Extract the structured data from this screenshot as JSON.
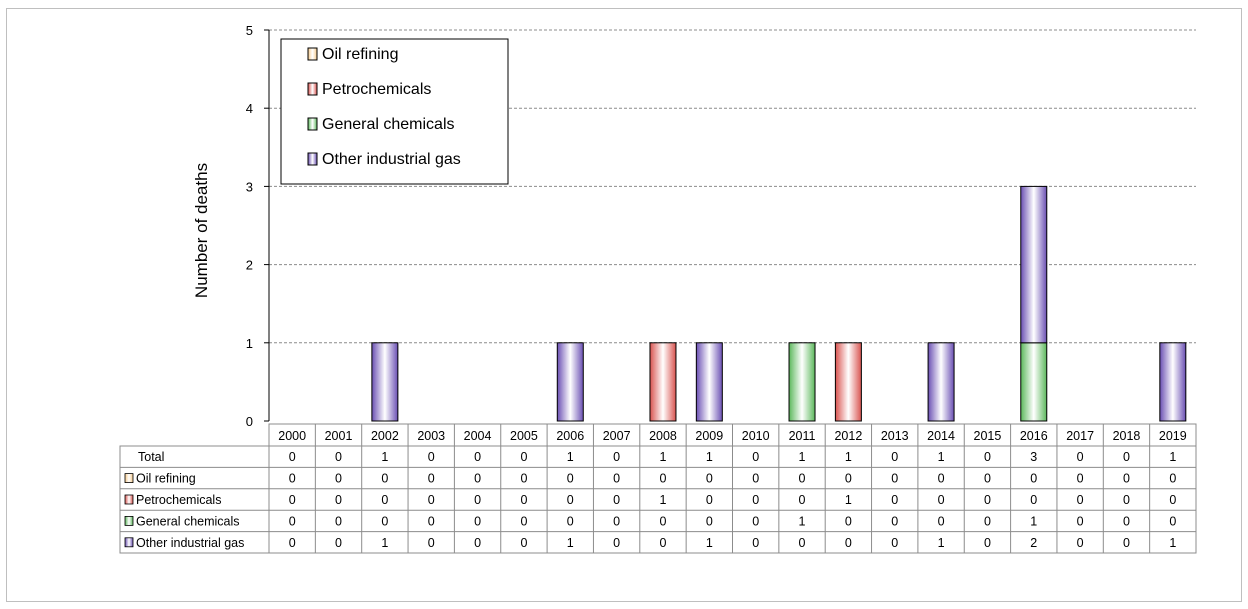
{
  "chart_data": {
    "type": "bar",
    "stacked": true,
    "title": "",
    "xlabel": "",
    "ylabel": "Number of deaths",
    "ylim": [
      0,
      5
    ],
    "yticks": [
      0,
      1,
      2,
      3,
      4,
      5
    ],
    "grid": "horizontal dashed",
    "legend_position": "top-left",
    "categories": [
      "2000",
      "2001",
      "2002",
      "2003",
      "2004",
      "2005",
      "2006",
      "2007",
      "2008",
      "2009",
      "2010",
      "2011",
      "2012",
      "2013",
      "2014",
      "2015",
      "2016",
      "2017",
      "2018",
      "2019"
    ],
    "series": [
      {
        "name": "Oil refining",
        "color": "#f5c98a",
        "values": [
          0,
          0,
          0,
          0,
          0,
          0,
          0,
          0,
          0,
          0,
          0,
          0,
          0,
          0,
          0,
          0,
          0,
          0,
          0,
          0
        ]
      },
      {
        "name": "Petrochemicals",
        "color": "#d9534f",
        "values": [
          0,
          0,
          0,
          0,
          0,
          0,
          0,
          0,
          1,
          0,
          0,
          0,
          1,
          0,
          0,
          0,
          0,
          0,
          0,
          0
        ]
      },
      {
        "name": "General chemicals",
        "color": "#5cb85c",
        "values": [
          0,
          0,
          0,
          0,
          0,
          0,
          0,
          0,
          0,
          0,
          0,
          1,
          0,
          0,
          0,
          0,
          1,
          0,
          0,
          0
        ]
      },
      {
        "name": "Other industrial gas",
        "color": "#6a4fb3",
        "values": [
          0,
          0,
          1,
          0,
          0,
          0,
          1,
          0,
          0,
          1,
          0,
          0,
          0,
          0,
          1,
          0,
          2,
          0,
          0,
          1
        ]
      }
    ],
    "table": {
      "total_label": "Total",
      "totals": [
        0,
        0,
        1,
        0,
        0,
        0,
        1,
        0,
        1,
        1,
        0,
        1,
        1,
        0,
        1,
        0,
        3,
        0,
        0,
        1
      ]
    }
  }
}
